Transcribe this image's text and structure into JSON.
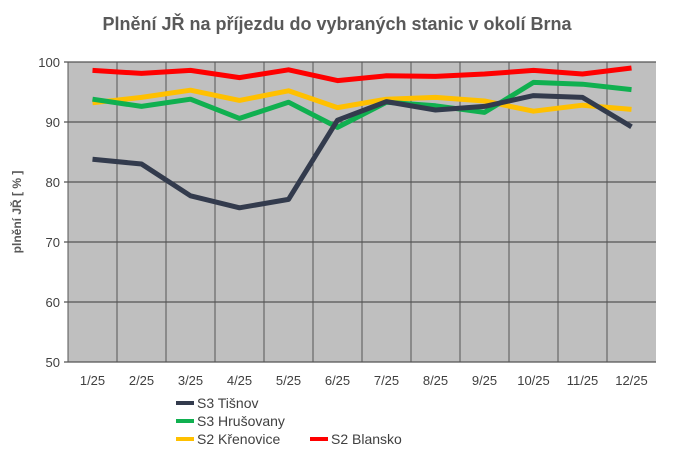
{
  "chart_data": {
    "type": "line",
    "title": "Plnění JŘ na příjezdu do vybraných stanic v okolí Brna",
    "xlabel": "",
    "ylabel": "plnění JŘ [ % ]",
    "ylim": [
      50,
      100
    ],
    "yticks": [
      "50",
      "60",
      "70",
      "80",
      "90",
      "100"
    ],
    "categories": [
      "1/25",
      "2/25",
      "3/25",
      "4/25",
      "5/25",
      "6/25",
      "7/25",
      "8/25",
      "9/25",
      "10/25",
      "11/25",
      "12/25"
    ],
    "grid": true,
    "legend_position": "bottom-left",
    "series": [
      {
        "name": "S3 Tišnov",
        "color": "#333b4d",
        "values": [
          83.8,
          83.0,
          77.7,
          75.7,
          77.1,
          90.3,
          93.4,
          92.0,
          92.6,
          94.4,
          94.1,
          89.2
        ]
      },
      {
        "name": "S3 Hrušovany",
        "color": "#10b050",
        "values": [
          93.8,
          92.6,
          93.8,
          90.6,
          93.3,
          89.1,
          93.3,
          92.7,
          91.6,
          96.6,
          96.3,
          95.4
        ]
      },
      {
        "name": "S2 Křenovice",
        "color": "#ffc000",
        "values": [
          93.2,
          94.1,
          95.3,
          93.6,
          95.2,
          92.4,
          93.8,
          94.1,
          93.5,
          91.8,
          92.8,
          92.1
        ]
      },
      {
        "name": "S2 Blansko",
        "color": "#ff0000",
        "values": [
          98.6,
          98.1,
          98.6,
          97.4,
          98.7,
          96.9,
          97.7,
          97.6,
          98.0,
          98.6,
          98.0,
          99.0
        ]
      }
    ]
  }
}
